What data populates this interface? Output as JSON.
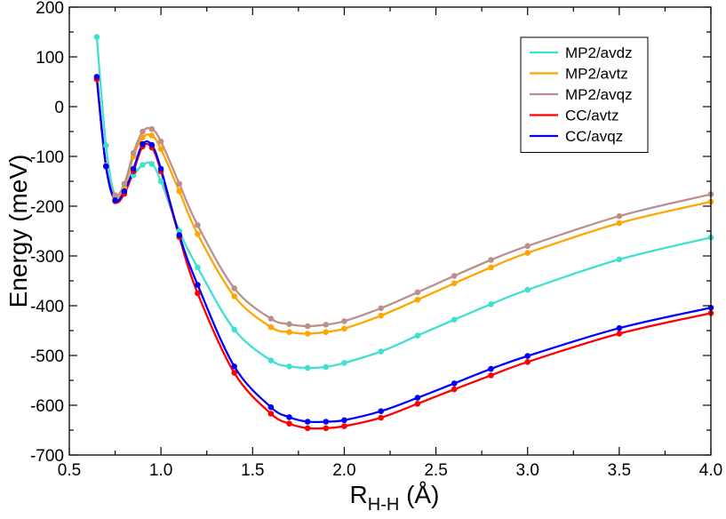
{
  "chart_data": {
    "type": "line",
    "title": "",
    "xlabel": {
      "main": "R",
      "sub": "H-H",
      "unit": " (Å)"
    },
    "ylabel": "Energy (meV)",
    "xlim": [
      0.5,
      4.0
    ],
    "ylim": [
      -700,
      200
    ],
    "xticks": [
      0.5,
      1.0,
      1.5,
      2.0,
      2.5,
      3.0,
      3.5,
      4.0
    ],
    "xtick_labels": [
      "0.5",
      "1.0",
      "1.5",
      "2.0",
      "2.5",
      "3.0",
      "3.5",
      "4.0"
    ],
    "yticks": [
      -700,
      -600,
      -500,
      -400,
      -300,
      -200,
      -100,
      0,
      100,
      200
    ],
    "ytick_labels": [
      "-700",
      "-600",
      "-500",
      "-400",
      "-300",
      "-200",
      "-100",
      "0",
      "100",
      "200"
    ],
    "legend_position": "top-right",
    "grid": false,
    "series": [
      {
        "name": "MP2/avdz",
        "color": "#40E0D0",
        "x": [
          0.65,
          0.7,
          0.75,
          0.8,
          0.85,
          0.9,
          0.95,
          1.0,
          1.1,
          1.2,
          1.4,
          1.6,
          1.7,
          1.8,
          1.9,
          2.0,
          2.2,
          2.4,
          2.6,
          2.8,
          3.0,
          3.5,
          4.0
        ],
        "y": [
          140,
          -78,
          -180,
          -162,
          -138,
          -117,
          -115,
          -150,
          -250,
          -323,
          -448,
          -510,
          -522,
          -525,
          -523,
          -515,
          -492,
          -460,
          -428,
          -397,
          -368,
          -307,
          -263
        ]
      },
      {
        "name": "MP2/avtz",
        "color": "#FFA500",
        "x": [
          0.65,
          0.7,
          0.75,
          0.8,
          0.85,
          0.9,
          0.95,
          1.0,
          1.1,
          1.2,
          1.4,
          1.6,
          1.7,
          1.8,
          1.9,
          2.0,
          2.2,
          2.4,
          2.6,
          2.8,
          3.0,
          3.5,
          4.0
        ],
        "y": [
          55,
          -120,
          -180,
          -163,
          -100,
          -62,
          -58,
          -85,
          -170,
          -256,
          -381,
          -443,
          -453,
          -456,
          -453,
          -446,
          -420,
          -388,
          -355,
          -323,
          -294,
          -234,
          -191
        ]
      },
      {
        "name": "MP2/avqz",
        "color": "#BC8F8F",
        "x": [
          0.65,
          0.7,
          0.75,
          0.8,
          0.85,
          0.9,
          0.95,
          1.0,
          1.1,
          1.2,
          1.4,
          1.6,
          1.7,
          1.8,
          1.9,
          2.0,
          2.2,
          2.4,
          2.6,
          2.8,
          3.0,
          3.5,
          4.0
        ],
        "y": [
          57,
          -118,
          -178,
          -155,
          -93,
          -50,
          -45,
          -70,
          -155,
          -238,
          -365,
          -426,
          -437,
          -441,
          -438,
          -431,
          -405,
          -373,
          -340,
          -308,
          -280,
          -220,
          -176
        ]
      },
      {
        "name": "CC/avtz",
        "color": "#FF0000",
        "x": [
          0.65,
          0.7,
          0.75,
          0.8,
          0.85,
          0.9,
          0.95,
          1.0,
          1.1,
          1.2,
          1.4,
          1.6,
          1.7,
          1.8,
          1.9,
          2.0,
          2.2,
          2.4,
          2.6,
          2.8,
          3.0,
          3.5,
          4.0
        ],
        "y": [
          55,
          -120,
          -190,
          -175,
          -130,
          -80,
          -82,
          -130,
          -262,
          -375,
          -535,
          -617,
          -637,
          -646,
          -646,
          -642,
          -625,
          -597,
          -568,
          -540,
          -513,
          -456,
          -415
        ]
      },
      {
        "name": "CC/avqz",
        "color": "#0000FF",
        "x": [
          0.65,
          0.7,
          0.75,
          0.8,
          0.85,
          0.9,
          0.95,
          1.0,
          1.1,
          1.2,
          1.4,
          1.6,
          1.7,
          1.8,
          1.9,
          2.0,
          2.2,
          2.4,
          2.6,
          2.8,
          3.0,
          3.5,
          4.0
        ],
        "y": [
          60,
          -120,
          -188,
          -170,
          -125,
          -75,
          -77,
          -125,
          -258,
          -358,
          -522,
          -604,
          -624,
          -633,
          -633,
          -630,
          -612,
          -585,
          -556,
          -527,
          -501,
          -445,
          -404
        ]
      }
    ]
  }
}
